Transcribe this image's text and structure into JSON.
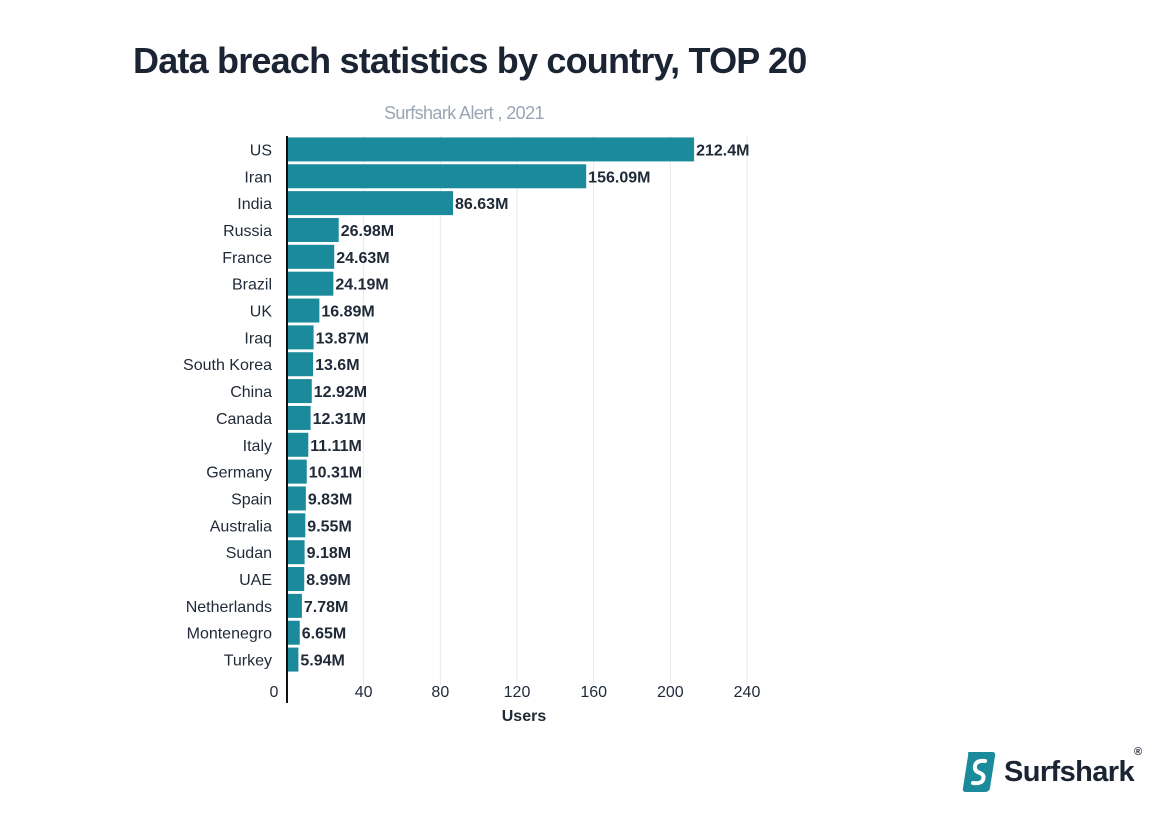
{
  "title": "Data breach statistics by country, TOP 20",
  "subtitle": "Surfshark Alert , 2021",
  "brand": {
    "name": "Surfshark",
    "registered": "®",
    "logo_icon": "surfshark-s-logo-icon"
  },
  "colors": {
    "bar": "#1b8a9b",
    "grid": "#e6e9ed",
    "axis": "#111111",
    "text": "#1f2937",
    "subtitle": "#9aa6b5",
    "brand": "#1b8a9b"
  },
  "chart_data": {
    "type": "bar",
    "orientation": "horizontal",
    "categories": [
      "US",
      "Iran",
      "India",
      "Russia",
      "France",
      "Brazil",
      "UK",
      "Iraq",
      "South Korea",
      "China",
      "Canada",
      "Italy",
      "Germany",
      "Spain",
      "Australia",
      "Sudan",
      "UAE",
      "Netherlands",
      "Montenegro",
      "Turkey"
    ],
    "values": [
      212.4,
      156.09,
      86.63,
      26.98,
      24.63,
      24.19,
      16.89,
      13.87,
      13.6,
      12.92,
      12.31,
      11.11,
      10.31,
      9.83,
      9.55,
      9.18,
      8.99,
      7.78,
      6.65,
      5.94
    ],
    "value_labels": [
      "212.4M",
      "156.09M",
      "86.63M",
      "26.98M",
      "24.63M",
      "24.19M",
      "16.89M",
      "13.87M",
      "13.6M",
      "12.92M",
      "12.31M",
      "11.11M",
      "10.31M",
      "9.83M",
      "9.55M",
      "9.18M",
      "8.99M",
      "7.78M",
      "6.65M",
      "5.94M"
    ],
    "xlabel": "Users",
    "ylabel": "",
    "xticks": [
      0,
      40,
      80,
      120,
      160,
      200,
      240
    ],
    "xlim": [
      0,
      240
    ],
    "grid": "vertical",
    "legend": "none"
  }
}
